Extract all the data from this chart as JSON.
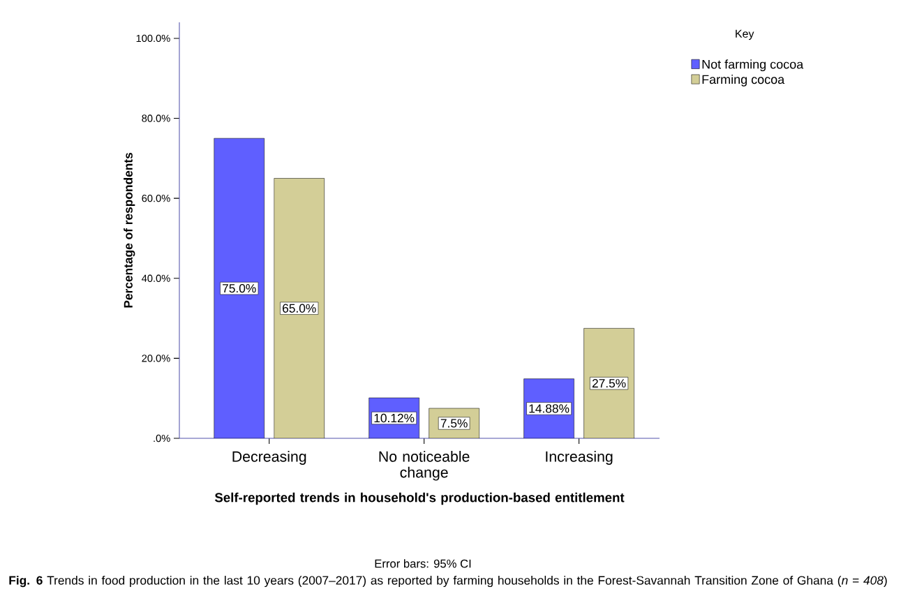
{
  "chart_data": {
    "type": "bar",
    "xlabel": "Self-reported trends in household's production-based entitlement",
    "ylabel": "Percentage of respondents",
    "legend_title": "Key",
    "legend": "top right",
    "categories": [
      "Decreasing",
      "No noticeable change",
      "Increasing"
    ],
    "series": [
      {
        "name": "Not farming cocoa",
        "color": "#5f5fff",
        "values": [
          75,
          10.12,
          14.88
        ],
        "value_labels": [
          "75.0%",
          "10.12%",
          "14.88%"
        ]
      },
      {
        "name": "Farming cocoa",
        "color": "#d3ce97",
        "values": [
          65,
          7.5,
          27.5
        ],
        "value_labels": [
          "65.0%",
          "7.5%",
          "27.5%"
        ]
      }
    ],
    "ylim": [
      0,
      104
    ],
    "yticks": [
      {
        "value": 0,
        "label": ".0%"
      },
      {
        "value": 20,
        "label": "20.0%"
      },
      {
        "value": 40,
        "label": "40.0%"
      },
      {
        "value": 60,
        "label": "60.0%"
      },
      {
        "value": 80,
        "label": "80.0%"
      },
      {
        "value": 100,
        "label": "100.0%"
      }
    ],
    "grid": false,
    "annotations": [
      "Error bars: 95% CI",
      "**Fig. 6** Trends in food production in the last 10 years (2007–2017) as reported by farming households in the Forest-Savannah Transition Zone of Ghana (*n* = *408*)"
    ]
  }
}
